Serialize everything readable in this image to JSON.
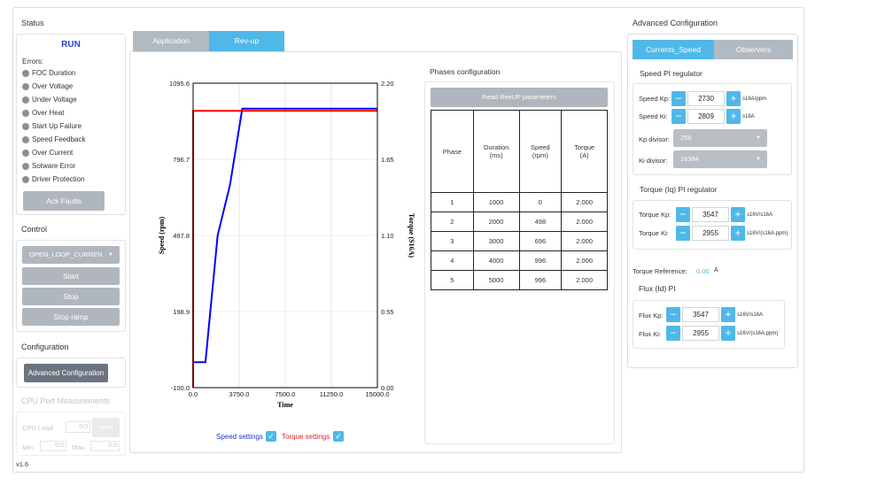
{
  "status": {
    "title": "Status",
    "run_label": "RUN",
    "errors_label": "Errors:",
    "errors": [
      "FOC Duration",
      "Over Voltage",
      "Under Voltage",
      "Over Heat",
      "Start Up Failure",
      "Speed Feedback",
      "Over Current",
      "Sotware Error",
      "Driver Protection"
    ],
    "ack_button": "Ack Faults"
  },
  "control": {
    "title": "Control",
    "mode_select": "OPEN_LOOP_CURREN",
    "start_button": "Start",
    "stop_button": "Stop",
    "stop_ramp_button": "Stop ramp"
  },
  "configuration": {
    "title": "Configuration",
    "advanced_button": "Advanced Configuration"
  },
  "cpu": {
    "title": "CPU Perf Measurements",
    "load_label": "CPU Load:",
    "load_value": "0.0",
    "load_unit": "%",
    "reset_button": "reset",
    "min_label": "Min:",
    "min_value": "0.0",
    "max_label": "Max:",
    "max_value": "0.0"
  },
  "version": "v1.6",
  "tabs": {
    "application": "Application",
    "revup": "Rev-up"
  },
  "chart_data": {
    "type": "line",
    "xlabel": "Time",
    "ylabel": "Speed (rpm)",
    "y2label": "Torque (S16A)",
    "xlim": [
      0.0,
      15000.0
    ],
    "ylim": [
      -100.0,
      1095.6
    ],
    "y2lim": [
      0.0,
      2.2
    ],
    "xticks": [
      "0.0",
      "3750.0",
      "7500.0",
      "11250.0",
      "15000.0"
    ],
    "yticks": [
      "-100.0",
      "198.9",
      "497.8",
      "796.7",
      "1095.6"
    ],
    "y2ticks": [
      "0.00",
      "0.55",
      "1.10",
      "1.65",
      "2.20"
    ],
    "grid": true,
    "series": [
      {
        "name": "Speed settings",
        "color": "#0000ff",
        "axis": "left",
        "x": [
          0,
          0,
          1000,
          2000,
          3000,
          4000,
          5000,
          15000
        ],
        "y": [
          -100,
          0,
          0,
          498,
          696,
          996,
          996,
          996
        ]
      },
      {
        "name": "Torque settings",
        "color": "#ff0000",
        "axis": "right",
        "x": [
          0,
          0,
          1000,
          2000,
          3000,
          4000,
          5000,
          15000
        ],
        "y": [
          0,
          2.0,
          2.0,
          2.0,
          2.0,
          2.0,
          2.0,
          2.0
        ]
      }
    ],
    "legend": [
      "Speed settings",
      "Torque settings"
    ]
  },
  "phases": {
    "title": "Phases configuration",
    "read_button": "Read RevUP parameters",
    "headers": [
      "Phase",
      "Duration\n(ms)",
      "Speed\n(rpm)",
      "Torque\n(A)"
    ],
    "rows": [
      [
        "1",
        "1000",
        "0",
        "2.000"
      ],
      [
        "2",
        "2000",
        "498",
        "2.000"
      ],
      [
        "3",
        "3000",
        "696",
        "2.000"
      ],
      [
        "4",
        "4000",
        "996",
        "2.000"
      ],
      [
        "5",
        "5000",
        "996",
        "2.000"
      ]
    ]
  },
  "advanced": {
    "title": "Advanced Configuration",
    "tab_currents": "Currents_Speed",
    "tab_observers": "Observers",
    "speed_pi_title": "Speed PI regulator",
    "speed_kp_label": "Speed Kp:",
    "speed_kp_value": "2730",
    "speed_kp_unit": "s16A/ppm",
    "speed_ki_label": "Speed Ki:",
    "speed_ki_value": "2809",
    "speed_ki_unit": "s16A",
    "kp_divisor_label": "Kp divisor:",
    "kp_divisor_value": "256",
    "ki_divisor_label": "Ki divisor:",
    "ki_divisor_value": "16384",
    "torque_pi_title": "Torque (Iq) PI regulator",
    "torque_kp_label": "Torque Kp:",
    "torque_kp_value": "3547",
    "torque_kp_unit": "s16V/s16A",
    "torque_ki_label": "Torque Ki:",
    "torque_ki_value": "2955",
    "torque_ki_unit": "s16V/(s16A.ppm)",
    "torque_ref_label": "Torque Reference:",
    "torque_ref_value": "0.00",
    "torque_ref_unit": "A",
    "flux_pi_title": "Flux (Id) PI",
    "flux_kp_label": "Flux Kp:",
    "flux_kp_value": "3547",
    "flux_kp_unit": "s16V/s16A",
    "flux_ki_label": "Flux Ki:",
    "flux_ki_value": "2955",
    "flux_ki_unit": "s16V/(s16A.ppm)"
  },
  "icons": {
    "minus": "−",
    "plus": "+",
    "check": "✓",
    "caret": "▼"
  }
}
